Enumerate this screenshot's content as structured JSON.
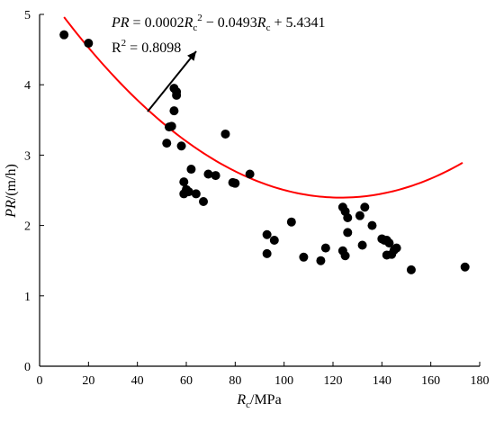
{
  "chart_data": {
    "type": "scatter",
    "xlabel": {
      "main": "R",
      "sub": "c",
      "unit": "/MPa"
    },
    "ylabel": {
      "main": "PR",
      "unit": "/(m/h)"
    },
    "xlim": [
      0,
      180
    ],
    "ylim": [
      0,
      5
    ],
    "x_ticks": [
      0,
      20,
      40,
      60,
      80,
      100,
      120,
      140,
      160,
      180
    ],
    "y_ticks": [
      0,
      1,
      2,
      3,
      4,
      5
    ],
    "grid": false,
    "legend": "none",
    "points": [
      [
        10,
        4.71
      ],
      [
        20,
        4.59
      ],
      [
        52,
        3.17
      ],
      [
        53,
        3.4
      ],
      [
        54,
        3.41
      ],
      [
        55,
        3.95
      ],
      [
        55,
        3.63
      ],
      [
        56,
        3.9
      ],
      [
        56,
        3.85
      ],
      [
        58,
        3.13
      ],
      [
        59,
        2.62
      ],
      [
        59,
        2.45
      ],
      [
        60,
        2.51
      ],
      [
        61,
        2.48
      ],
      [
        62,
        2.8
      ],
      [
        64,
        2.45
      ],
      [
        67,
        2.34
      ],
      [
        69,
        2.73
      ],
      [
        72,
        2.71
      ],
      [
        76,
        3.3
      ],
      [
        79,
        2.61
      ],
      [
        80,
        2.6
      ],
      [
        86,
        2.73
      ],
      [
        93,
        1.87
      ],
      [
        93,
        1.6
      ],
      [
        96,
        1.79
      ],
      [
        103,
        2.05
      ],
      [
        108,
        1.55
      ],
      [
        115,
        1.5
      ],
      [
        117,
        1.68
      ],
      [
        124,
        2.26
      ],
      [
        124,
        1.64
      ],
      [
        125,
        2.2
      ],
      [
        125,
        1.57
      ],
      [
        126,
        1.9
      ],
      [
        126,
        2.11
      ],
      [
        131,
        2.14
      ],
      [
        132,
        1.72
      ],
      [
        133,
        2.26
      ],
      [
        136,
        2.0
      ],
      [
        140,
        1.81
      ],
      [
        141,
        1.79
      ],
      [
        142,
        1.58
      ],
      [
        142,
        1.79
      ],
      [
        143,
        1.75
      ],
      [
        144,
        1.59
      ],
      [
        145,
        1.65
      ],
      [
        146,
        1.68
      ],
      [
        152,
        1.37
      ],
      [
        174,
        1.41
      ]
    ],
    "fit": {
      "coefficients": {
        "a": 0.0002,
        "b": -0.0493,
        "c": 5.4341
      },
      "x_range": [
        10,
        173
      ],
      "color": "#ff0000"
    },
    "equation": {
      "prefix": "PR",
      "eq1": " = 0.0002",
      "var1": "R",
      "sub1": "c",
      "sup1": "2",
      "eq2": " − 0.0493",
      "var2": "R",
      "sub2": "c",
      "eq3": " + 5.4341",
      "r2_main": "R",
      "r2_sup": "2",
      "r2_val": " = 0.8098"
    },
    "arrow_color": "#000000",
    "point_color": "#000000"
  }
}
